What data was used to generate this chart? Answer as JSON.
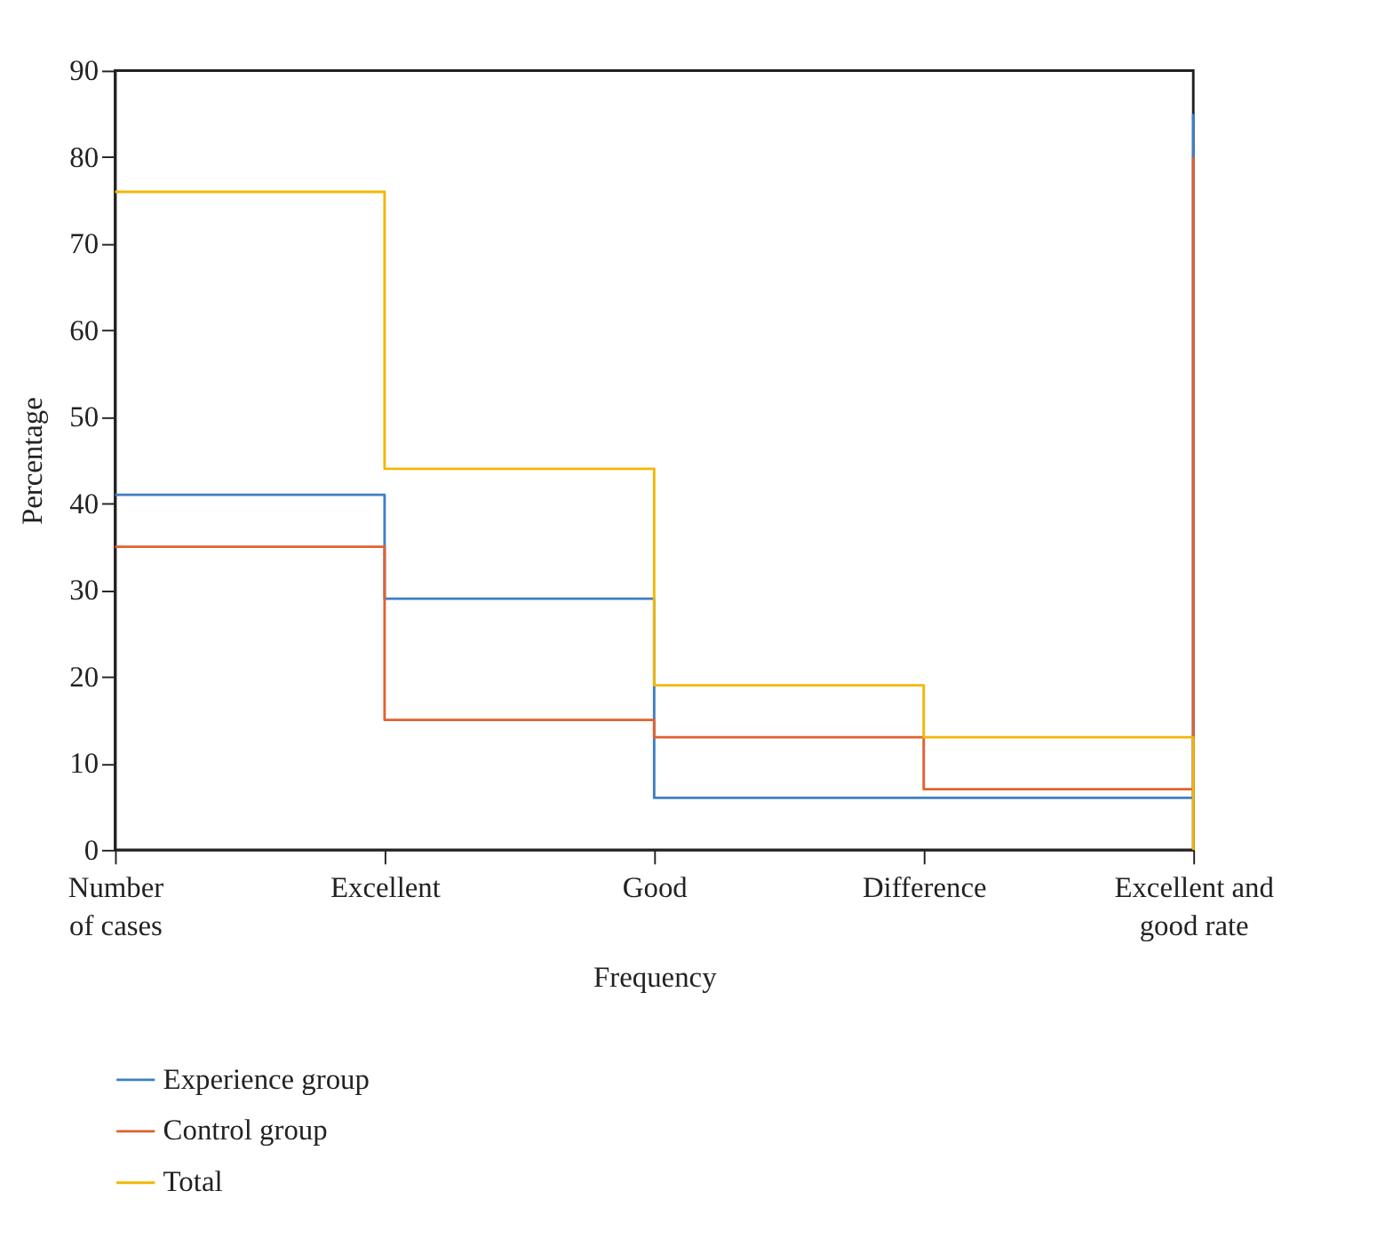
{
  "chart_data": {
    "type": "step",
    "xlabel": "Frequency",
    "ylabel": "Percentage",
    "categories": [
      "Number of cases",
      "Excellent",
      "Good",
      "Difference",
      "Excellent and good rate"
    ],
    "series": [
      {
        "name": "Experience group",
        "color": "#3f7fc4",
        "values": [
          41,
          29,
          6,
          6,
          85
        ]
      },
      {
        "name": "Control group",
        "color": "#e0622f",
        "values": [
          35,
          15,
          13,
          7,
          80
        ]
      },
      {
        "name": "Total",
        "color": "#f2b705",
        "values": [
          76,
          44,
          19,
          13,
          0
        ]
      }
    ],
    "ylim": [
      0,
      90
    ],
    "yticks": [
      0,
      10,
      20,
      30,
      40,
      50,
      60,
      70,
      80,
      90
    ],
    "grid": false,
    "legend": "bottom",
    "marker": "none",
    "line_style": "solid"
  }
}
